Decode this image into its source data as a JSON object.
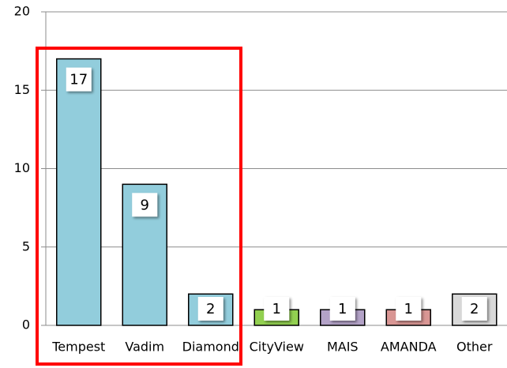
{
  "chart_data": {
    "type": "bar",
    "categories": [
      "Tempest",
      "Vadim",
      "Diamond",
      "CityView",
      "MAIS",
      "AMANDA",
      "Other"
    ],
    "values": [
      17,
      9,
      2,
      1,
      1,
      1,
      2
    ],
    "colors": [
      "#92cddc",
      "#92cddc",
      "#92cddc",
      "#92d050",
      "#b3a2c7",
      "#d99694",
      "#d9d9d9"
    ],
    "ylim": [
      0,
      20
    ],
    "yticks": [
      0,
      5,
      10,
      15,
      20
    ],
    "grid": true
  }
}
